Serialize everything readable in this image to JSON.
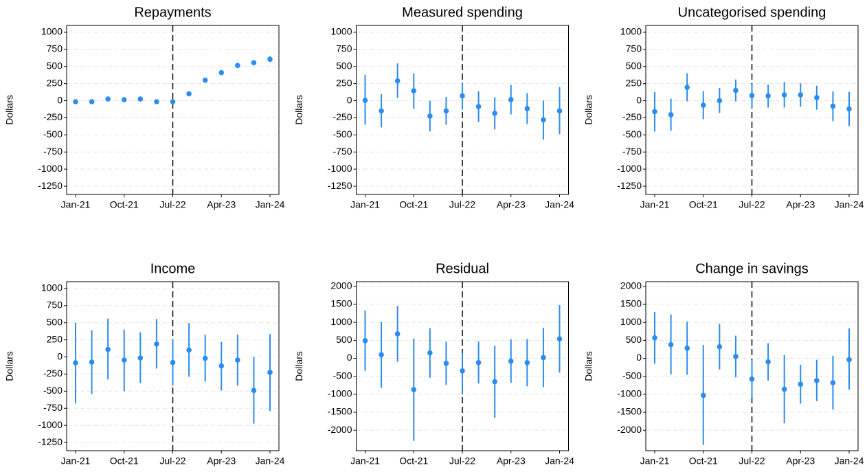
{
  "chart_data": [
    {
      "type": "errorbar",
      "title": "Repayments",
      "y_label": "Dollars",
      "color": "#2b8cf0",
      "vline": "Jul-22",
      "categories": [
        "Jan-21",
        null,
        null,
        "Oct-21",
        null,
        null,
        "Jul-22",
        null,
        null,
        "Apr-23",
        null,
        null,
        "Jan-24"
      ],
      "values": [
        -15,
        -15,
        25,
        15,
        25,
        -15,
        -15,
        100,
        300,
        410,
        515,
        555,
        605
      ],
      "lower": [
        -40,
        -35,
        0,
        -15,
        5,
        -30,
        -40,
        80,
        280,
        390,
        490,
        525,
        570
      ],
      "upper": [
        10,
        5,
        50,
        45,
        45,
        0,
        10,
        120,
        320,
        430,
        540,
        590,
        650
      ],
      "ylim": [
        -1370,
        1100
      ],
      "yticks": [
        1000,
        750,
        500,
        250,
        0,
        -250,
        -500,
        -750,
        -1000,
        -1250
      ],
      "grid": true
    },
    {
      "type": "errorbar",
      "title": "Measured spending",
      "y_label": "Dollars",
      "color": "#2b8cf0",
      "vline": "Jul-22",
      "categories": [
        "Jan-21",
        null,
        null,
        "Oct-21",
        null,
        null,
        "Jul-22",
        null,
        null,
        "Apr-23",
        null,
        null,
        "Jan-24"
      ],
      "values": [
        5,
        -150,
        290,
        145,
        -225,
        -150,
        70,
        -85,
        -185,
        15,
        -115,
        -280,
        -150
      ],
      "lower": [
        -350,
        -390,
        40,
        -120,
        -450,
        -350,
        -130,
        -310,
        -420,
        -200,
        -340,
        -570,
        -490
      ],
      "upper": [
        380,
        95,
        545,
        400,
        0,
        55,
        265,
        135,
        50,
        230,
        110,
        0,
        200
      ],
      "ylim": [
        -1370,
        1100
      ],
      "yticks": [
        1000,
        750,
        500,
        250,
        0,
        -250,
        -500,
        -750,
        -1000,
        -1250
      ],
      "grid": true
    },
    {
      "type": "errorbar",
      "title": "Uncategorised spending",
      "y_label": "Dollars",
      "color": "#2b8cf0",
      "vline": "Jul-22",
      "categories": [
        "Jan-21",
        null,
        null,
        "Oct-21",
        null,
        null,
        "Jul-22",
        null,
        null,
        "Apr-23",
        null,
        null,
        "Jan-24"
      ],
      "values": [
        -160,
        -205,
        195,
        -65,
        0,
        150,
        75,
        70,
        85,
        85,
        45,
        -80,
        -120
      ],
      "lower": [
        -450,
        -440,
        -10,
        -270,
        -180,
        -10,
        -100,
        -100,
        -100,
        -90,
        -130,
        -300,
        -370
      ],
      "upper": [
        125,
        30,
        400,
        140,
        185,
        310,
        240,
        235,
        270,
        255,
        220,
        135,
        130
      ],
      "ylim": [
        -1370,
        1100
      ],
      "yticks": [
        1000,
        750,
        500,
        250,
        0,
        -250,
        -500,
        -750,
        -1000,
        -1250
      ],
      "grid": true
    },
    {
      "type": "errorbar",
      "title": "Income",
      "y_label": "Dollars",
      "color": "#2b8cf0",
      "vline": "Jul-22",
      "categories": [
        "Jan-21",
        null,
        null,
        "Oct-21",
        null,
        null,
        "Jul-22",
        null,
        null,
        "Apr-23",
        null,
        null,
        "Jan-24"
      ],
      "values": [
        -85,
        -75,
        110,
        -45,
        -15,
        190,
        -80,
        100,
        -20,
        -130,
        -45,
        -490,
        -225
      ],
      "lower": [
        -680,
        -540,
        -330,
        -500,
        -380,
        -170,
        -420,
        -290,
        -360,
        -490,
        -420,
        -975,
        -790
      ],
      "upper": [
        500,
        390,
        560,
        400,
        360,
        555,
        260,
        495,
        325,
        220,
        330,
        0,
        335
      ],
      "ylim": [
        -1370,
        1100
      ],
      "yticks": [
        1000,
        750,
        500,
        250,
        0,
        -250,
        -500,
        -750,
        -1000,
        -1250
      ],
      "grid": true
    },
    {
      "type": "errorbar",
      "title": "Residual",
      "y_label": "Dollars",
      "color": "#2b8cf0",
      "vline": "Jul-22",
      "categories": [
        "Jan-21",
        null,
        null,
        "Oct-21",
        null,
        null,
        "Jul-22",
        null,
        null,
        "Apr-23",
        null,
        null,
        "Jan-24"
      ],
      "values": [
        490,
        100,
        680,
        -870,
        150,
        -140,
        -350,
        -120,
        -650,
        -80,
        -120,
        20,
        540
      ],
      "lower": [
        -350,
        -820,
        -100,
        -2300,
        -540,
        -740,
        -1000,
        -700,
        -1650,
        -680,
        -780,
        -800,
        -400
      ],
      "upper": [
        1330,
        1010,
        1450,
        550,
        840,
        460,
        150,
        470,
        350,
        530,
        540,
        850,
        1480
      ],
      "ylim": [
        -2570,
        2130
      ],
      "yticks": [
        2000,
        1500,
        1000,
        500,
        0,
        -500,
        -1000,
        -1500,
        -2000
      ],
      "grid": true
    },
    {
      "type": "errorbar",
      "title": "Change in savings",
      "y_label": "Dollars",
      "color": "#2b8cf0",
      "vline": "Jul-22",
      "categories": [
        "Jan-21",
        null,
        null,
        "Oct-21",
        null,
        null,
        "Jul-22",
        null,
        null,
        "Apr-23",
        null,
        null,
        "Jan-24"
      ],
      "values": [
        570,
        380,
        280,
        -1030,
        320,
        50,
        -580,
        -100,
        -860,
        -720,
        -620,
        -680,
        -40
      ],
      "lower": [
        -150,
        -450,
        -460,
        -2410,
        -310,
        -530,
        -1100,
        -620,
        -1810,
        -1260,
        -1190,
        -1430,
        -870
      ],
      "upper": [
        1290,
        1220,
        1020,
        370,
        960,
        630,
        -50,
        420,
        90,
        -180,
        -40,
        70,
        830
      ],
      "ylim": [
        -2570,
        2130
      ],
      "yticks": [
        2000,
        1500,
        1000,
        500,
        0,
        -500,
        -1000,
        -1500,
        -2000
      ],
      "grid": true
    }
  ]
}
